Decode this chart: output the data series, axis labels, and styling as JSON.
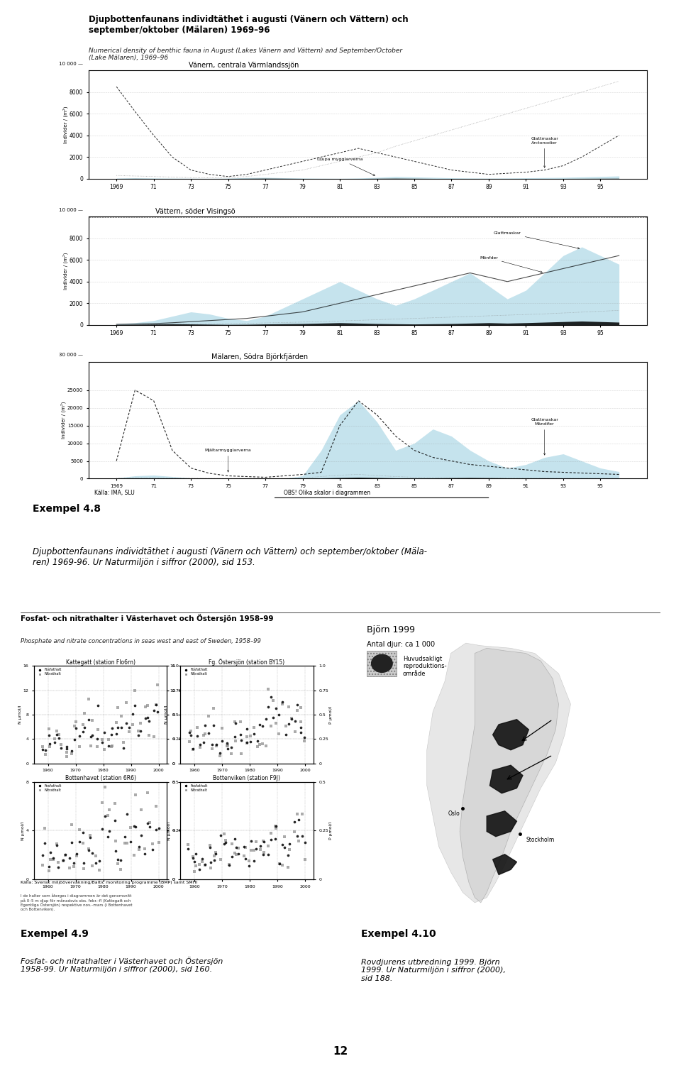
{
  "page_bg": "#ffffff",
  "title_4_8_line1": "Djupbottenfaunans individtäthet i augusti (Vänern och Vättern) och",
  "title_4_8_line2": "september/oktober (Mälaren) 1969–96",
  "subtitle_4_8": "Numerical density of benthic fauna in August (Lakes Vänern and Vättern) and September/October\n(Lake Mälaren), 1969–96",
  "panel1_title": "Vänern, centrala Värmlandssjön",
  "panel2_title": "Vättern, söder Visingsö",
  "panel3_title": "Mälaren, Södra Björkfjärden",
  "ylabel_v": "Individer / (m²)",
  "source_text": "Källa: IMA, SLU",
  "source_text2": "OBS! Olika skalor i diagrammen",
  "annotation_p1a": "Djupa mygglarverna",
  "annotation_p1b": "Glattmaskar\nArctonodier",
  "annotation_p2a": "Glattmaskar",
  "annotation_p2b": "Mönfder",
  "annotation_p3a": "Mjältarmygglarverna",
  "annotation_p3b": "Glattmaskar\nMändifer",
  "example_num_4_8": "Exempel 4.8",
  "caption_4_8": "Djupbottenfaunans individtäthet i augusti (Vänern och Vättern) och september/oktober (Mäla-\nren) 1969-96. Ur Naturmiljön i siffror (2000), sid 153.",
  "title_4_9_bold": "Fosfat- och nitrathalter i Västerhavet och Östersjön 1958–99",
  "subtitle_4_9": "Phosphate and nitrate concentrations in seas west and east of Sweden, 1958–99",
  "panel_kg": "Kattegatt (station Flo6rn)",
  "panel_os": "Fg. Östersjön (station BY15)",
  "panel_bh": "Bottenhavet (station 6R6)",
  "panel_bv": "Bottenviken (station F9J)",
  "source_4_9a": "Källa: Svensk miljöövervakning/Baltic monitoring programme (BMP) samt SMHI",
  "footnote_4_9": "I de halter som återges i diagrammen är det genomsnitt\npå 0–5 m djup för månadsvis obs. febr.–fl (Kattegatt och\nEgentliga Östersjön) respektive nov.–mars (i Bottenhavet\noch Bottenviken).",
  "example_num_4_9": "Exempel 4.9",
  "caption_4_9": "Fosfat- och nitrathalter i Västerhavet och Östersjön\n1958-99. Ur Naturmiljön i siffror (2000), sid 160.",
  "bjorn_title": "Björn 1999",
  "bjorn_antal": "Antal djur: ca 1 000",
  "bjorn_legend": "Huvudsakligt\nreproduktions-\nområde",
  "example_num_4_10": "Exempel 4.10",
  "caption_4_10": "Rovdjurens utbredning 1999. Björn\n1999. Ur Naturmiljön i siffror (2000),\nsid 188.",
  "page_number": "12",
  "light_blue": "#add8e6",
  "light_yellow": "#ffffe0",
  "chart_bg": "#ffffff"
}
